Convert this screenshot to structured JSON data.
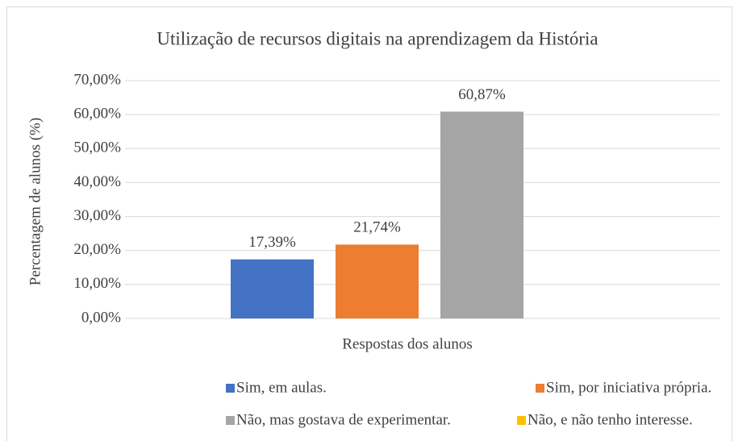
{
  "chart_data": {
    "type": "bar",
    "title": "Utilização de recursos digitais na aprendizagem da História",
    "x_label": "Respostas dos alunos",
    "y_label": "Percentagem de alunos (%)",
    "categories": [
      null
    ],
    "series": [
      {
        "name": "Sim, em aulas.",
        "color": "#4472c4",
        "values": [
          17.39
        ],
        "value_labels": [
          "17,39%"
        ]
      },
      {
        "name": "Sim, por iniciativa própria.",
        "color": "#ed7d31",
        "values": [
          21.74
        ],
        "value_labels": [
          "21,74%"
        ]
      },
      {
        "name": "Não, mas gostava de experimentar.",
        "color": "#a5a5a5",
        "values": [
          60.87
        ],
        "value_labels": [
          "60,87%"
        ]
      },
      {
        "name": "Não, e não tenho interesse.",
        "color": "#ffc000",
        "values": [
          0
        ]
      }
    ],
    "ylim": [
      0,
      70
    ],
    "yticks": [
      {
        "value": 0,
        "label": "0,00%"
      },
      {
        "value": 10,
        "label": "10,00%"
      },
      {
        "value": 20,
        "label": "20,00%"
      },
      {
        "value": 30,
        "label": "30,00%"
      },
      {
        "value": 40,
        "label": "40,00%"
      },
      {
        "value": 50,
        "label": "50,00%"
      },
      {
        "value": 60,
        "label": "60,00%"
      },
      {
        "value": 70,
        "label": "70,00%"
      }
    ],
    "grid": true,
    "legend": "bottom"
  }
}
